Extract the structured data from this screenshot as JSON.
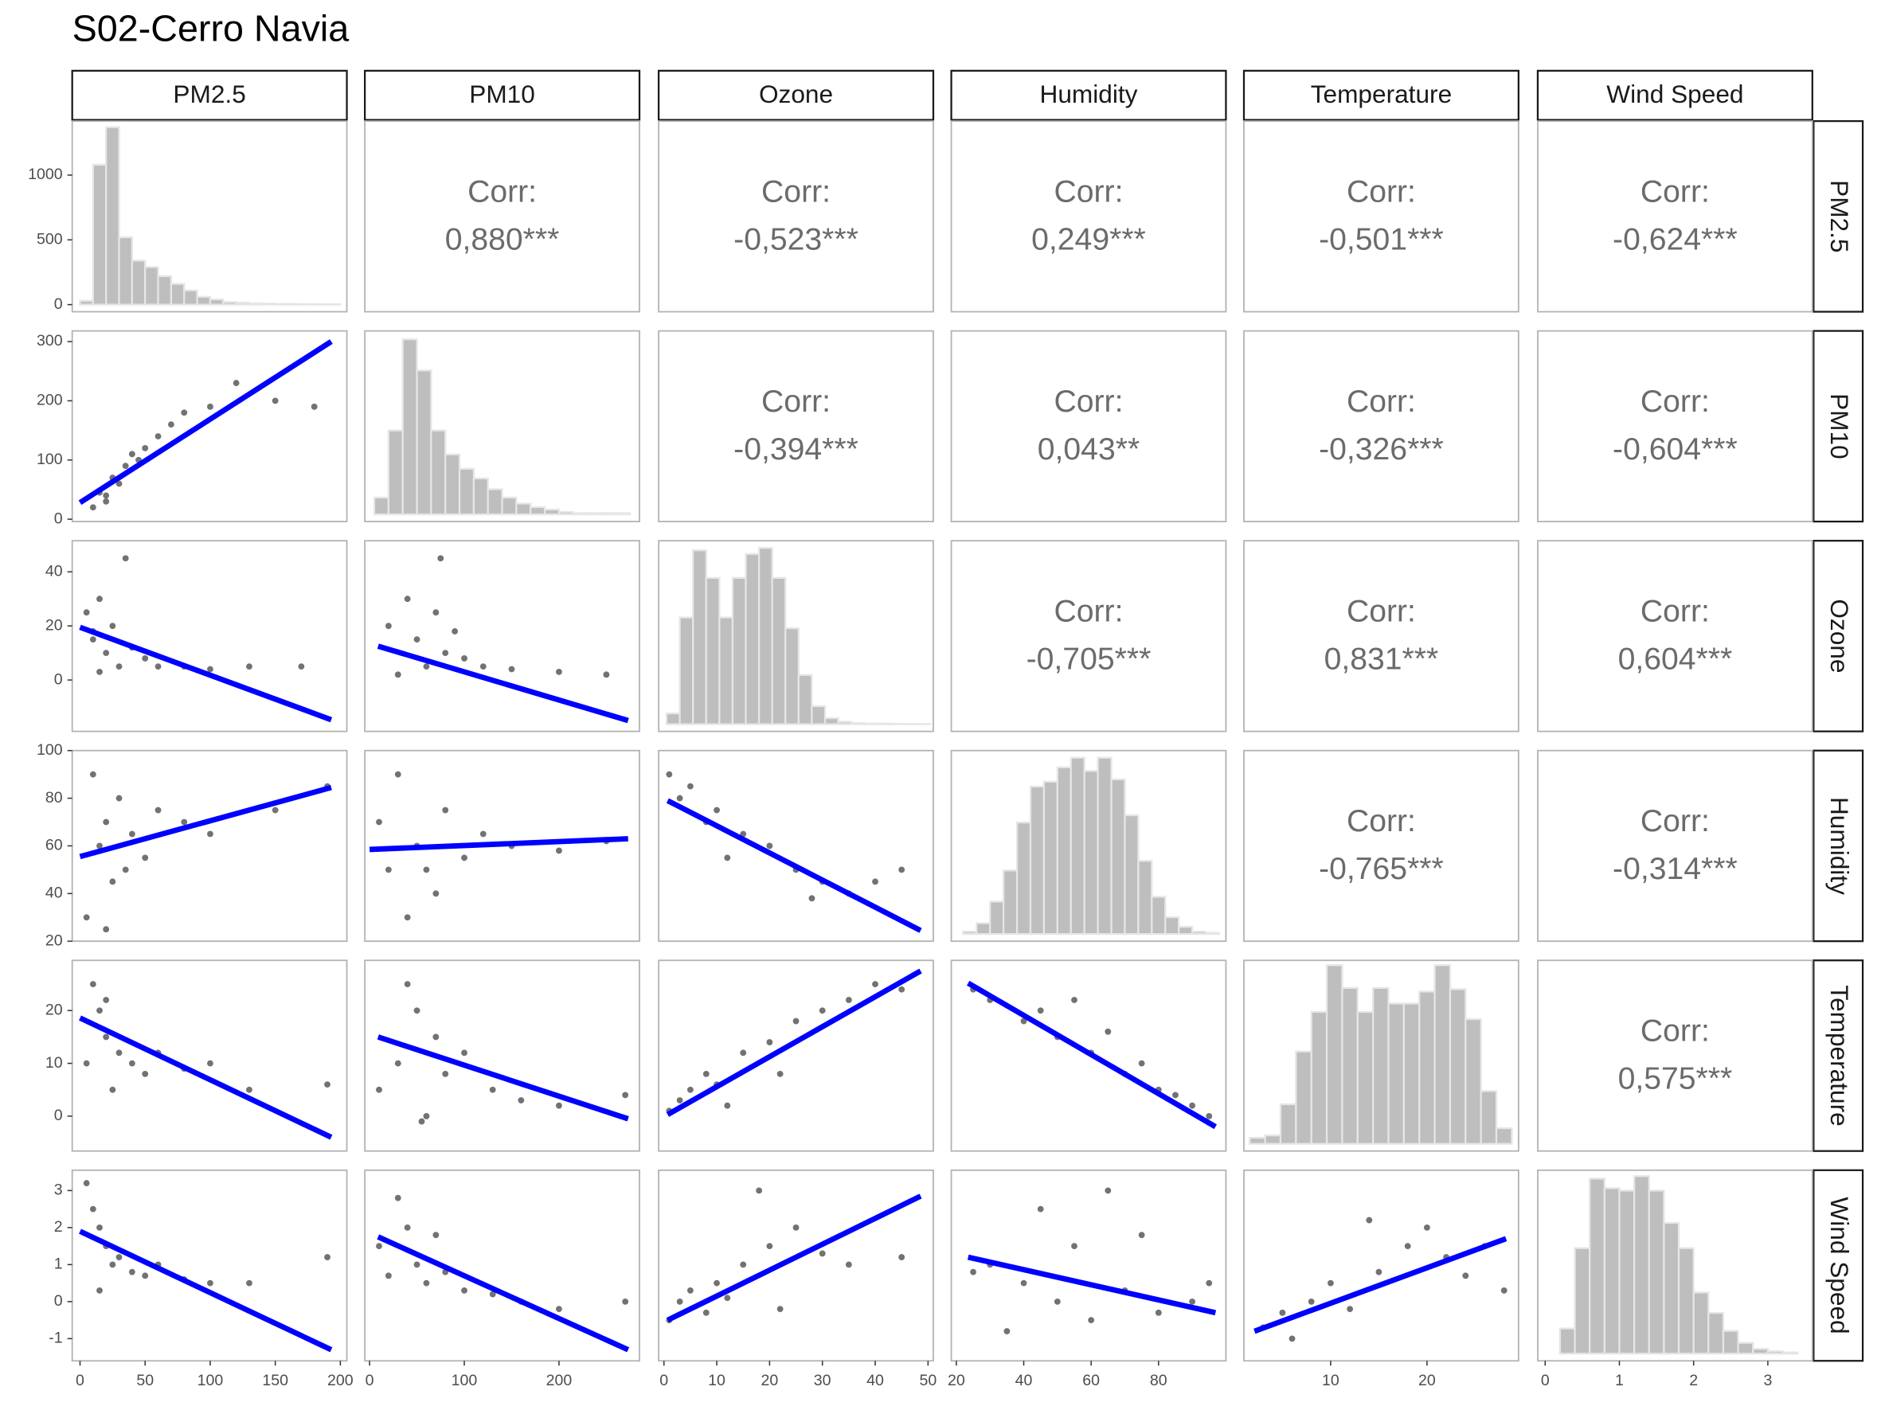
{
  "chart_data": {
    "type": "pairs",
    "title": "S02-Cerro Navia",
    "corr_label": "Corr:",
    "point_color": "#595959",
    "fit_color": "#0000ff",
    "hist_color": "#bebebe",
    "variables": [
      {
        "name": "PM2.5",
        "xlim": [
          -6,
          205
        ],
        "xticks": [
          0,
          50,
          100,
          150,
          200
        ]
      },
      {
        "name": "PM10",
        "xlim": [
          -5,
          285
        ],
        "xticks": [
          0,
          100,
          200
        ],
        "ylim": [
          -4,
          318
        ],
        "yticks": [
          0,
          100,
          200,
          300
        ]
      },
      {
        "name": "Ozone",
        "xlim": [
          -1,
          51
        ],
        "xticks": [
          0,
          10,
          20,
          30,
          40,
          50
        ],
        "ylim": [
          -19,
          51.5
        ],
        "yticks": [
          0,
          20,
          40
        ]
      },
      {
        "name": "Humidity",
        "xlim": [
          18.5,
          100
        ],
        "xticks": [
          20,
          40,
          60,
          80
        ],
        "ylim": [
          20,
          100
        ],
        "yticks": [
          20,
          40,
          60,
          80,
          100
        ]
      },
      {
        "name": "Temperature",
        "xlim": [
          1,
          29.5
        ],
        "xticks": [
          10,
          20
        ],
        "ylim": [
          -6.6,
          29.5
        ],
        "yticks": [
          0,
          10,
          20
        ]
      },
      {
        "name": "Wind Speed",
        "xlim": [
          -0.1,
          3.6
        ],
        "xticks": [
          0,
          1,
          2,
          3
        ],
        "ylim": [
          -1.6,
          3.55
        ],
        "yticks": [
          -1,
          0,
          1,
          2,
          3
        ]
      }
    ],
    "histograms": [
      {
        "bins": [
          0,
          10,
          20,
          30,
          40,
          50,
          60,
          70,
          80,
          90,
          100,
          110,
          120,
          130,
          140,
          150,
          160,
          170,
          180,
          190,
          200
        ],
        "counts": [
          30,
          1080,
          1370,
          520,
          340,
          290,
          220,
          160,
          110,
          60,
          40,
          20,
          15,
          10,
          8,
          5,
          5,
          4,
          3,
          3
        ],
        "ylim": [
          -55,
          1417
        ],
        "yticks": [
          0,
          500,
          1000
        ]
      },
      {
        "bins": [
          5,
          20,
          35,
          50,
          65,
          80,
          95,
          110,
          125,
          140,
          155,
          170,
          185,
          200,
          215,
          230,
          245,
          260,
          275
        ],
        "counts": [
          140,
          700,
          1460,
          1200,
          700,
          500,
          380,
          300,
          210,
          140,
          90,
          60,
          40,
          20,
          10,
          10,
          10,
          10
        ],
        "ylim": [
          -60,
          1530
        ]
      },
      {
        "bins": [
          0.5,
          3,
          5.5,
          8,
          10.5,
          13,
          15.5,
          18,
          20.5,
          23,
          25.5,
          28,
          30.5,
          33,
          35.5,
          38,
          40.5,
          43,
          45.5,
          48,
          50.5
        ],
        "counts": [
          90,
          890,
          1450,
          1220,
          890,
          1220,
          1420,
          1470,
          1220,
          800,
          410,
          150,
          50,
          20,
          10,
          5,
          5,
          3,
          2,
          1
        ],
        "ylim": [
          -60,
          1530
        ]
      },
      {
        "bins": [
          22,
          26,
          30,
          34,
          38,
          42,
          46,
          50,
          54,
          58,
          62,
          66,
          70,
          74,
          78,
          82,
          86,
          90,
          94,
          98
        ],
        "counts": [
          20,
          90,
          270,
          530,
          930,
          1230,
          1270,
          1390,
          1470,
          1360,
          1470,
          1290,
          990,
          610,
          310,
          140,
          60,
          20,
          10
        ],
        "ylim": [
          -60,
          1530
        ]
      },
      {
        "bins": [
          1.6,
          3.2,
          4.8,
          6.4,
          8,
          9.6,
          11.2,
          12.8,
          14.4,
          16,
          17.6,
          19.2,
          20.8,
          22.4,
          24,
          25.6,
          27.2,
          28.8
        ],
        "counts": [
          50,
          70,
          330,
          770,
          1100,
          1490,
          1300,
          1100,
          1300,
          1170,
          1170,
          1270,
          1490,
          1290,
          1040,
          440,
          130
        ],
        "ylim": [
          -60,
          1530
        ]
      },
      {
        "bins": [
          0.2,
          0.4,
          0.6,
          0.8,
          1,
          1.2,
          1.4,
          1.6,
          1.8,
          2,
          2.2,
          2.4,
          2.6,
          2.8,
          3,
          3.2,
          3.4
        ],
        "counts": [
          210,
          880,
          1460,
          1380,
          1360,
          1480,
          1360,
          1090,
          880,
          510,
          340,
          190,
          90,
          40,
          20,
          10
        ],
        "ylim": [
          -60,
          1530
        ]
      }
    ],
    "correlations": [
      "0,880***",
      "-0,523***",
      "0,249***",
      "-0,501***",
      "-0,624***",
      "-0,394***",
      "0,043**",
      "-0,326***",
      "-0,604***",
      "-0,705***",
      "0,831***",
      "0,604***",
      "-0,765***",
      "-0,314***",
      "0,575***"
    ],
    "scatter": [
      {
        "x": [
          10,
          15,
          20,
          25,
          30,
          35,
          40,
          50,
          60,
          70,
          80,
          100,
          120,
          150,
          180,
          20,
          45
        ],
        "y": [
          20,
          45,
          40,
          70,
          60,
          90,
          110,
          120,
          140,
          160,
          180,
          190,
          230,
          200,
          190,
          30,
          100
        ],
        "fit": {
          "x": [
            0,
            193
          ],
          "y": [
            28,
            300
          ]
        }
      },
      {
        "x": [
          5,
          10,
          15,
          20,
          25,
          30,
          40,
          50,
          60,
          80,
          100,
          130,
          170,
          15,
          35,
          10
        ],
        "y": [
          25,
          15,
          30,
          10,
          20,
          5,
          12,
          8,
          5,
          5,
          4,
          5,
          5,
          3,
          45,
          18
        ],
        "fit": {
          "x": [
            0,
            193
          ],
          "y": [
            19.5,
            -14.7
          ]
        }
      },
      {
        "x": [
          20,
          40,
          50,
          60,
          70,
          80,
          100,
          120,
          150,
          200,
          250,
          75,
          30,
          90
        ],
        "y": [
          20,
          30,
          15,
          5,
          25,
          10,
          8,
          5,
          4,
          3,
          2,
          45,
          2,
          18
        ],
        "fit": {
          "x": [
            9,
            273
          ],
          "y": [
            12.5,
            -15
          ]
        }
      },
      {
        "x": [
          5,
          10,
          15,
          20,
          25,
          30,
          40,
          50,
          60,
          80,
          100,
          150,
          190,
          20,
          35
        ],
        "y": [
          30,
          90,
          60,
          70,
          45,
          80,
          65,
          55,
          75,
          70,
          65,
          75,
          85,
          25,
          50
        ],
        "fit": {
          "x": [
            0,
            193
          ],
          "y": [
            55.5,
            84.5
          ]
        }
      },
      {
        "x": [
          10,
          30,
          40,
          50,
          60,
          80,
          100,
          120,
          150,
          200,
          250,
          70,
          20
        ],
        "y": [
          70,
          90,
          30,
          60,
          50,
          75,
          55,
          65,
          60,
          58,
          62,
          40,
          50
        ],
        "fit": {
          "x": [
            0,
            273
          ],
          "y": [
            58.5,
            63
          ]
        }
      },
      {
        "x": [
          1,
          3,
          5,
          8,
          10,
          15,
          20,
          25,
          30,
          35,
          40,
          45,
          12,
          28
        ],
        "y": [
          90,
          80,
          85,
          70,
          75,
          65,
          60,
          50,
          45,
          40,
          45,
          50,
          55,
          38
        ],
        "fit": {
          "x": [
            0.7,
            48.6
          ],
          "y": [
            79,
            24.5
          ]
        }
      },
      {
        "x": [
          5,
          10,
          15,
          20,
          25,
          30,
          40,
          50,
          60,
          80,
          100,
          130,
          190,
          20
        ],
        "y": [
          10,
          25,
          20,
          15,
          5,
          12,
          10,
          8,
          12,
          9,
          10,
          5,
          6,
          22
        ],
        "fit": {
          "x": [
            0,
            193
          ],
          "y": [
            18.6,
            -4
          ]
        }
      },
      {
        "x": [
          10,
          30,
          40,
          50,
          60,
          70,
          80,
          100,
          130,
          160,
          200,
          270,
          55
        ],
        "y": [
          5,
          10,
          25,
          20,
          0,
          15,
          8,
          12,
          5,
          3,
          2,
          4,
          -1
        ],
        "fit": {
          "x": [
            9,
            273
          ],
          "y": [
            15,
            -0.5
          ]
        }
      },
      {
        "x": [
          1,
          3,
          5,
          8,
          10,
          15,
          20,
          25,
          30,
          35,
          40,
          45,
          12,
          22
        ],
        "y": [
          1,
          3,
          5,
          8,
          6,
          12,
          14,
          18,
          20,
          22,
          25,
          24,
          2,
          8
        ],
        "fit": {
          "x": [
            0.7,
            48.6
          ],
          "y": [
            0.3,
            27.5
          ]
        }
      },
      {
        "x": [
          25,
          30,
          40,
          45,
          50,
          60,
          65,
          70,
          75,
          80,
          85,
          90,
          95,
          55
        ],
        "y": [
          24,
          22,
          18,
          20,
          15,
          12,
          16,
          8,
          10,
          5,
          4,
          2,
          0,
          22
        ],
        "fit": {
          "x": [
            23.5,
            96.9
          ],
          "y": [
            25.2,
            -2
          ]
        }
      },
      {
        "x": [
          5,
          10,
          15,
          20,
          25,
          30,
          40,
          50,
          60,
          80,
          100,
          130,
          190,
          15
        ],
        "y": [
          3.2,
          2.5,
          2,
          1.5,
          1,
          1.2,
          0.8,
          0.7,
          1,
          0.6,
          0.5,
          0.5,
          1.2,
          0.3
        ],
        "fit": {
          "x": [
            0,
            193
          ],
          "y": [
            1.9,
            -1.3
          ]
        }
      },
      {
        "x": [
          10,
          30,
          40,
          50,
          60,
          80,
          100,
          130,
          160,
          200,
          270,
          70,
          20
        ],
        "y": [
          1.5,
          2.8,
          2,
          1,
          0.5,
          0.8,
          0.3,
          0.2,
          0,
          -0.2,
          0,
          1.8,
          0.7
        ],
        "fit": {
          "x": [
            9,
            273
          ],
          "y": [
            1.75,
            -1.3
          ]
        }
      },
      {
        "x": [
          1,
          3,
          5,
          8,
          10,
          15,
          20,
          25,
          30,
          35,
          45,
          18,
          22,
          12
        ],
        "y": [
          -0.5,
          0,
          0.3,
          -0.3,
          0.5,
          1,
          1.5,
          2,
          1.3,
          1,
          1.2,
          3,
          -0.2,
          0.1
        ],
        "fit": {
          "x": [
            0.7,
            48.6
          ],
          "y": [
            -0.5,
            2.85
          ]
        }
      },
      {
        "x": [
          25,
          30,
          40,
          45,
          50,
          55,
          60,
          65,
          70,
          75,
          80,
          90,
          95,
          35
        ],
        "y": [
          0.8,
          1,
          0.5,
          2.5,
          0,
          1.5,
          -0.5,
          3,
          0.3,
          1.8,
          -0.3,
          0,
          0.5,
          -0.8
        ],
        "fit": {
          "x": [
            23.5,
            96.9
          ],
          "y": [
            1.2,
            -0.3
          ]
        }
      },
      {
        "x": [
          3,
          5,
          8,
          10,
          12,
          15,
          18,
          20,
          22,
          24,
          26,
          28,
          14,
          6
        ],
        "y": [
          -0.7,
          -0.3,
          0,
          0.5,
          -0.2,
          0.8,
          1.5,
          2,
          1.2,
          0.7,
          1.5,
          0.3,
          2.2,
          -1
        ],
        "fit": {
          "x": [
            2.1,
            28.2
          ],
          "y": [
            -0.8,
            1.7
          ]
        }
      }
    ]
  }
}
